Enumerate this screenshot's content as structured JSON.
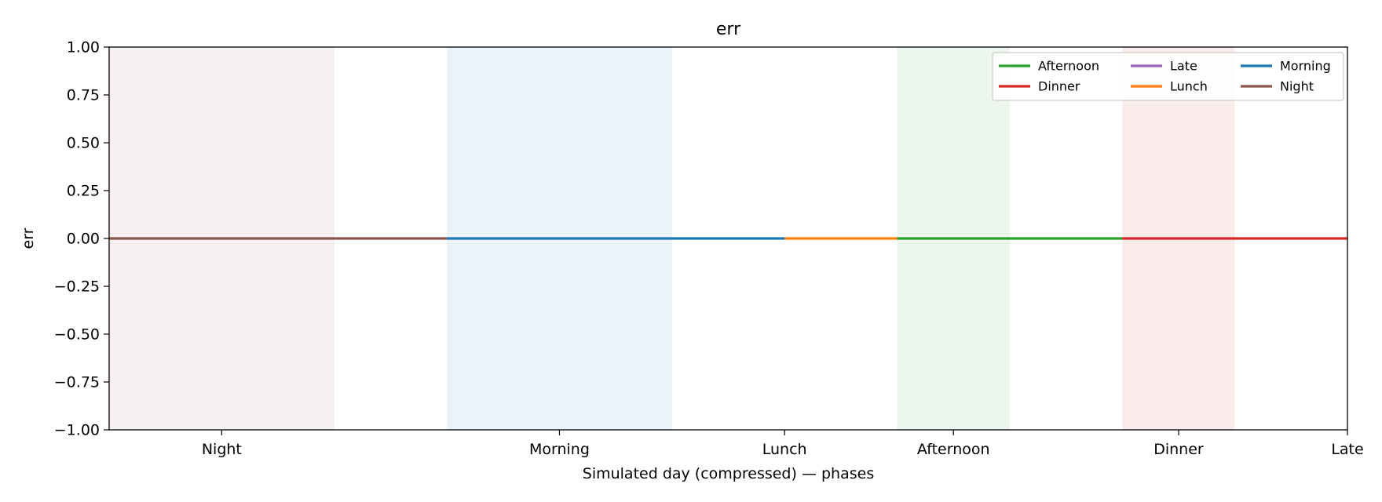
{
  "chart_data": {
    "type": "line",
    "title": "err",
    "xlabel": "Simulated day (compressed) — phases",
    "ylabel": "err",
    "x_range": [
      0,
      11
    ],
    "ylim": [
      -1,
      1
    ],
    "y_ticks": [
      -1.0,
      -0.75,
      -0.5,
      -0.25,
      0.0,
      0.25,
      0.5,
      0.75,
      1.0
    ],
    "y_tick_labels": [
      "−1.00",
      "−0.75",
      "−0.50",
      "−0.25",
      "0.00",
      "0.25",
      "0.50",
      "0.75",
      "1.00"
    ],
    "x_ticks": [
      {
        "x": 1.0,
        "label": "Night"
      },
      {
        "x": 4.0,
        "label": "Morning"
      },
      {
        "x": 6.0,
        "label": "Lunch"
      },
      {
        "x": 7.5,
        "label": "Afternoon"
      },
      {
        "x": 9.5,
        "label": "Dinner"
      },
      {
        "x": 11.0,
        "label": "Late"
      }
    ],
    "grid": false,
    "shaded_bands": [
      {
        "phase": "Night",
        "x0": 0,
        "x1": 2,
        "color": "#8c564b"
      },
      {
        "phase": "Morning",
        "x0": 3,
        "x1": 5,
        "color": "#1f77b4"
      },
      {
        "phase": "Afternoon",
        "x0": 7,
        "x1": 8,
        "color": "#2ca02c"
      },
      {
        "phase": "Dinner",
        "x0": 9,
        "x1": 10,
        "color": "#d62728"
      }
    ],
    "band_opacity": 0.09,
    "series": [
      {
        "name": "Afternoon",
        "color": "#2ca02c",
        "points": [
          [
            7,
            0
          ],
          [
            9,
            0
          ]
        ]
      },
      {
        "name": "Dinner",
        "color": "#d62728",
        "points": [
          [
            9,
            0
          ],
          [
            11,
            0
          ]
        ]
      },
      {
        "name": "Late",
        "color": "#9467bd",
        "points": []
      },
      {
        "name": "Lunch",
        "color": "#ff7f0e",
        "points": [
          [
            6,
            0
          ],
          [
            7,
            0
          ]
        ]
      },
      {
        "name": "Morning",
        "color": "#1f77b4",
        "points": [
          [
            3,
            0
          ],
          [
            6,
            0
          ]
        ]
      },
      {
        "name": "Night",
        "color": "#8c564b",
        "points": [
          [
            0,
            0
          ],
          [
            3,
            0
          ]
        ]
      }
    ],
    "legend": {
      "placement": "top-right",
      "columns": 3
    }
  }
}
